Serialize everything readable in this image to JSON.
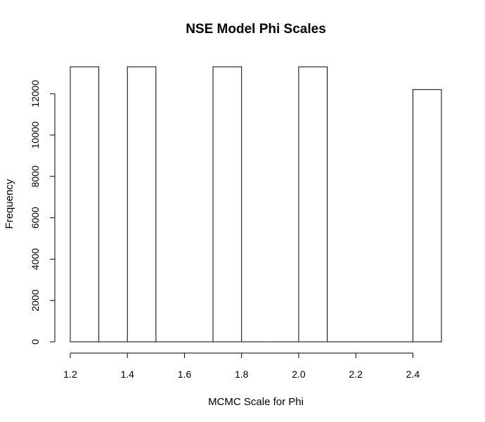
{
  "chart_data": {
    "type": "bar",
    "title": "NSE Model Phi Scales",
    "xlabel": "MCMC Scale for Phi",
    "ylabel": "Frequency",
    "xlim": [
      1.2,
      2.5
    ],
    "ylim": [
      0,
      13300
    ],
    "xticks": [
      1.2,
      1.4,
      1.6,
      1.8,
      2.0,
      2.2,
      2.4
    ],
    "xtick_labels": [
      "1.2",
      "1.4",
      "1.6",
      "1.8",
      "2.0",
      "2.2",
      "2.4"
    ],
    "yticks": [
      0,
      2000,
      4000,
      6000,
      8000,
      10000,
      12000
    ],
    "ytick_labels": [
      "0",
      "2000",
      "4000",
      "6000",
      "8000",
      "10000",
      "12000"
    ],
    "bins": [
      {
        "start": 1.2,
        "end": 1.3,
        "count": 13300
      },
      {
        "start": 1.3,
        "end": 1.4,
        "count": 0
      },
      {
        "start": 1.4,
        "end": 1.5,
        "count": 13300
      },
      {
        "start": 1.5,
        "end": 1.6,
        "count": 0
      },
      {
        "start": 1.6,
        "end": 1.7,
        "count": 0
      },
      {
        "start": 1.7,
        "end": 1.8,
        "count": 13300
      },
      {
        "start": 1.8,
        "end": 1.9,
        "count": 0
      },
      {
        "start": 1.9,
        "end": 2.0,
        "count": 0
      },
      {
        "start": 2.0,
        "end": 2.1,
        "count": 13300
      },
      {
        "start": 2.1,
        "end": 2.2,
        "count": 0
      },
      {
        "start": 2.2,
        "end": 2.3,
        "count": 0
      },
      {
        "start": 2.3,
        "end": 2.4,
        "count": 0
      },
      {
        "start": 2.4,
        "end": 2.5,
        "count": 12200
      }
    ],
    "colors": {
      "bar_fill": "#ffffff",
      "bar_stroke": "#000000",
      "background": "#ffffff"
    }
  }
}
